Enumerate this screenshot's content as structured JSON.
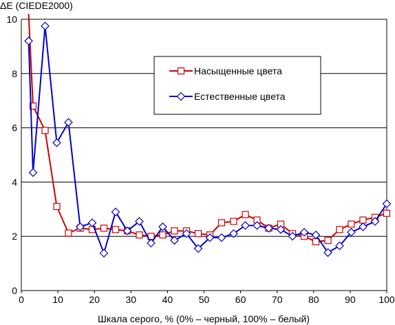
{
  "chart_data": {
    "type": "line",
    "title": "",
    "ylabel": "ΔE (CIEDE2000)",
    "xlabel": "Шкала серого, % (0% – черный, 100% – белый)",
    "xlim": [
      0,
      100
    ],
    "ylim": [
      0,
      10
    ],
    "x_ticks": [
      0,
      10,
      20,
      30,
      40,
      50,
      60,
      70,
      80,
      90,
      100
    ],
    "y_ticks": [
      0,
      2,
      4,
      6,
      8,
      10
    ],
    "grid": "horizontal",
    "legend_position": "center-right",
    "series": [
      {
        "name": "Насыщенные цвета",
        "color": "#cc0000",
        "marker": "square",
        "x": [
          2,
          3.2,
          6.5,
          9.7,
          12.9,
          16.1,
          19.4,
          22.6,
          25.8,
          29,
          32.3,
          35.5,
          38.7,
          41.9,
          45.2,
          48.4,
          51.6,
          54.8,
          58.1,
          61.3,
          64.5,
          67.7,
          71,
          74.2,
          77.4,
          80.6,
          83.9,
          87.1,
          90.3,
          93.5,
          96.8,
          100
        ],
        "y": [
          10.2,
          6.8,
          5.9,
          3.1,
          2.12,
          2.3,
          2.25,
          2.3,
          2.25,
          2.2,
          2.05,
          2.0,
          2.05,
          2.2,
          2.2,
          2.1,
          2.05,
          2.5,
          2.55,
          2.8,
          2.6,
          2.3,
          2.45,
          2.1,
          2.0,
          1.8,
          1.85,
          2.25,
          2.45,
          2.6,
          2.7,
          2.85
        ]
      },
      {
        "name": "Естественные цвета",
        "color": "#0000cc",
        "marker": "diamond",
        "x": [
          2,
          3.2,
          6.5,
          9.7,
          12.9,
          16.1,
          19.4,
          22.6,
          25.8,
          29,
          32.3,
          35.5,
          38.7,
          41.9,
          45.2,
          48.4,
          51.6,
          54.8,
          58.1,
          61.3,
          64.5,
          67.7,
          71,
          74.2,
          77.4,
          80.6,
          83.9,
          87.1,
          90.3,
          93.5,
          96.8,
          100
        ],
        "y": [
          9.2,
          4.35,
          9.75,
          5.45,
          6.2,
          2.35,
          2.5,
          1.38,
          2.9,
          2.2,
          2.55,
          1.75,
          2.35,
          1.85,
          2.1,
          1.55,
          1.95,
          1.95,
          2.1,
          2.4,
          2.4,
          2.3,
          2.25,
          2.0,
          2.15,
          2.05,
          1.4,
          1.65,
          2.15,
          2.35,
          2.55,
          3.2
        ]
      }
    ]
  }
}
